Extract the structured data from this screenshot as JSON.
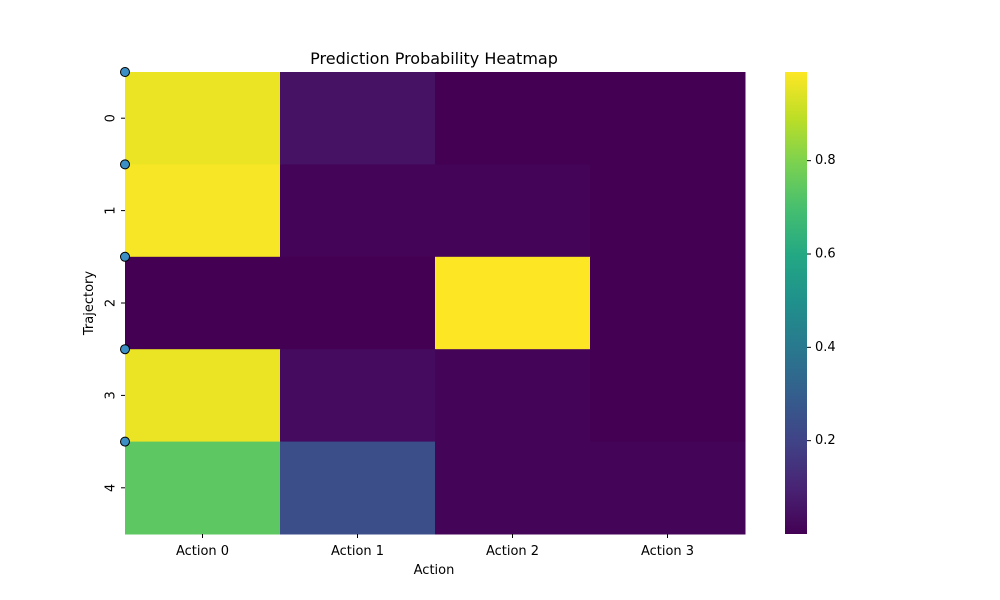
{
  "chart_data": {
    "type": "heatmap",
    "title": "Prediction Probability Heatmap",
    "xlabel": "Action",
    "ylabel": "Trajectory",
    "x_categories": [
      "Action 0",
      "Action 1",
      "Action 2",
      "Action 3"
    ],
    "y_categories": [
      "0",
      "1",
      "2",
      "3",
      "4"
    ],
    "values": [
      [
        0.96,
        0.05,
        0.0,
        0.0
      ],
      [
        0.98,
        0.01,
        0.01,
        0.0
      ],
      [
        0.0,
        0.0,
        0.99,
        0.0
      ],
      [
        0.96,
        0.03,
        0.01,
        0.0
      ],
      [
        0.74,
        0.24,
        0.01,
        0.01
      ]
    ],
    "colormap": "viridis",
    "colorbar": {
      "vmin": 0.0,
      "vmax": 0.99,
      "ticks": [
        0.2,
        0.4,
        0.6,
        0.8
      ],
      "tick_labels": [
        "0.2",
        "0.4",
        "0.6",
        "0.8"
      ]
    },
    "markers": {
      "y_positions": [
        0,
        1,
        2,
        3,
        4
      ],
      "color": "#3b8fc4",
      "edge_color": "#000000"
    }
  }
}
